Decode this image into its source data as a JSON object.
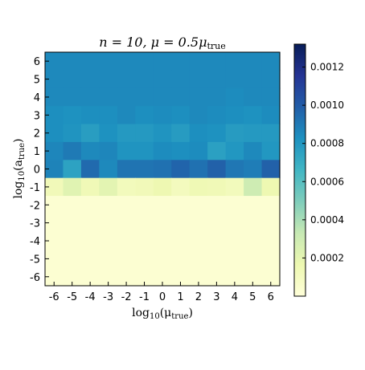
{
  "chart_data": {
    "type": "heatmap",
    "title": "n = 10,  μ = 0.5μ_true",
    "title_parts": {
      "main": "n = 10,  μ = 0.5μ",
      "sub": "true"
    },
    "xlabel": "log10(μ_true)",
    "xlabel_parts": {
      "pre": "log",
      "base": "10",
      "open": "(μ",
      "sub": "true",
      "close": ")"
    },
    "ylabel": "log10(a_true)",
    "ylabel_parts": {
      "pre": "log",
      "base": "10",
      "open": "(a",
      "sub": "true",
      "close": ")"
    },
    "x": [
      "-6",
      "-5",
      "-4",
      "-3",
      "-2",
      "-1",
      "0",
      "1",
      "2",
      "3",
      "4",
      "5",
      "6"
    ],
    "y": [
      "6",
      "5",
      "4",
      "3",
      "2",
      "1",
      "0",
      "-1",
      "-2",
      "-3",
      "-4",
      "-5",
      "-6"
    ],
    "colorbar": {
      "min": 0.0,
      "max": 0.00132,
      "ticks": [
        "0.0012",
        "0.0010",
        "0.0008",
        "0.0006",
        "0.0004",
        "0.0002"
      ],
      "tick_values": [
        0.0012,
        0.001,
        0.0008,
        0.0006,
        0.0004,
        0.0002
      ],
      "colormap": "YlGnBu",
      "colors": [
        "#ffffd9",
        "#edf8b1",
        "#c7e9b4",
        "#7fcdbb",
        "#41b6c4",
        "#1d91c0",
        "#225ea8",
        "#253494",
        "#081d58"
      ]
    },
    "values": [
      [
        0.00085,
        0.00085,
        0.00085,
        0.00085,
        0.00085,
        0.00085,
        0.00085,
        0.00085,
        0.00085,
        0.00085,
        0.00085,
        0.00085,
        0.00085
      ],
      [
        0.00085,
        0.00085,
        0.00085,
        0.00085,
        0.00085,
        0.00085,
        0.00085,
        0.00085,
        0.00085,
        0.00085,
        0.00085,
        0.00085,
        0.00085
      ],
      [
        0.00085,
        0.00085,
        0.00085,
        0.00085,
        0.00085,
        0.00085,
        0.00085,
        0.00085,
        0.00085,
        0.00085,
        0.00084,
        0.00085,
        0.00085
      ],
      [
        0.00083,
        0.00082,
        0.00083,
        0.00083,
        0.00085,
        0.00083,
        0.00084,
        0.00083,
        0.00085,
        0.00084,
        0.00083,
        0.00082,
        0.00084
      ],
      [
        0.00083,
        0.00081,
        0.00077,
        0.00082,
        0.00079,
        0.00079,
        0.00081,
        0.00078,
        0.00083,
        0.00082,
        0.00078,
        0.00079,
        0.00079
      ],
      [
        0.00086,
        0.0009,
        0.00085,
        0.00086,
        0.00081,
        0.00081,
        0.00084,
        0.00083,
        0.00084,
        0.00076,
        0.0008,
        0.00085,
        0.0008
      ],
      [
        0.00087,
        0.00075,
        0.00095,
        0.00085,
        0.00092,
        0.00092,
        0.00093,
        0.00097,
        0.00093,
        0.00098,
        0.00091,
        0.00089,
        0.00098
      ],
      [
        0.00013,
        0.00022,
        0.00014,
        0.00021,
        0.00012,
        0.00013,
        0.00016,
        0.00011,
        0.00015,
        0.00014,
        0.00012,
        0.0003,
        0.00016
      ],
      [
        3e-05,
        3e-05,
        3e-05,
        3e-05,
        3e-05,
        3e-05,
        3e-05,
        3e-05,
        3e-05,
        3e-05,
        3e-05,
        3e-05,
        3e-05
      ],
      [
        3e-05,
        3e-05,
        3e-05,
        3e-05,
        3e-05,
        3e-05,
        3e-05,
        3e-05,
        3e-05,
        3e-05,
        3e-05,
        3e-05,
        3e-05
      ],
      [
        3e-05,
        3e-05,
        3e-05,
        3e-05,
        3e-05,
        3e-05,
        3e-05,
        3e-05,
        3e-05,
        3e-05,
        3e-05,
        3e-05,
        3e-05
      ],
      [
        3e-05,
        3e-05,
        3e-05,
        3e-05,
        3e-05,
        3e-05,
        3e-05,
        3e-05,
        3e-05,
        3e-05,
        3e-05,
        3e-05,
        3e-05
      ],
      [
        3e-05,
        3e-05,
        3e-05,
        3e-05,
        3e-05,
        3e-05,
        3e-05,
        3e-05,
        3e-05,
        3e-05,
        3e-05,
        3e-05,
        3e-05
      ]
    ]
  }
}
